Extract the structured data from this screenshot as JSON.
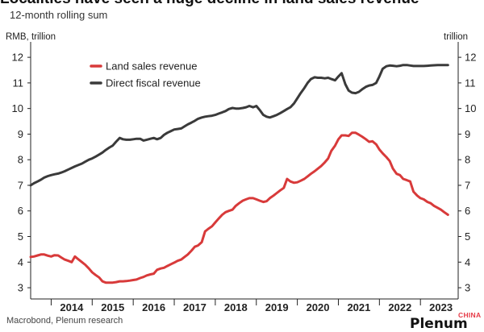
{
  "header": {
    "title": "Localities have seen a huge decline in land sales revenue",
    "subtitle": "12-month rolling sum"
  },
  "footer": {
    "source": "Macrobond, Plenum research",
    "brand": "Plenum",
    "brand_sub": "CHINA"
  },
  "chart_data": {
    "type": "line",
    "title": "Localities have seen a huge decline in land sales revenue",
    "subtitle": "12-month rolling sum",
    "ylabel_left": "RMB, trillion",
    "ylabel_right": "trillion",
    "ylim": [
      2.75,
      12.35
    ],
    "yticks": [
      3,
      4,
      5,
      6,
      7,
      8,
      9,
      10,
      11,
      12
    ],
    "xlim": [
      2013.5,
      2023.92
    ],
    "xticks": [
      "2014",
      "2015",
      "2016",
      "2017",
      "2018",
      "2019",
      "2020",
      "2021",
      "2022",
      "2023"
    ],
    "grid": false,
    "legend_position": "top-left",
    "series": [
      {
        "name": "Land sales revenue",
        "color": "#d83a3a",
        "x": [
          2013.5,
          2013.58,
          2013.67,
          2013.75,
          2013.83,
          2013.92,
          2014.0,
          2014.08,
          2014.17,
          2014.25,
          2014.33,
          2014.42,
          2014.5,
          2014.58,
          2014.67,
          2014.75,
          2014.83,
          2014.92,
          2015.0,
          2015.08,
          2015.17,
          2015.25,
          2015.33,
          2015.42,
          2015.5,
          2015.58,
          2015.67,
          2015.75,
          2015.83,
          2015.92,
          2016.0,
          2016.08,
          2016.17,
          2016.25,
          2016.33,
          2016.42,
          2016.5,
          2016.58,
          2016.67,
          2016.75,
          2016.83,
          2016.92,
          2017.0,
          2017.08,
          2017.17,
          2017.25,
          2017.33,
          2017.42,
          2017.5,
          2017.58,
          2017.67,
          2017.75,
          2017.83,
          2017.92,
          2018.0,
          2018.08,
          2018.17,
          2018.25,
          2018.33,
          2018.42,
          2018.5,
          2018.58,
          2018.67,
          2018.75,
          2018.83,
          2018.92,
          2019.0,
          2019.08,
          2019.17,
          2019.25,
          2019.33,
          2019.42,
          2019.5,
          2019.58,
          2019.67,
          2019.75,
          2019.83,
          2019.92,
          2020.0,
          2020.08,
          2020.17,
          2020.25,
          2020.33,
          2020.42,
          2020.5,
          2020.58,
          2020.67,
          2020.75,
          2020.83,
          2020.92,
          2021.0,
          2021.08,
          2021.17,
          2021.25,
          2021.33,
          2021.42,
          2021.5,
          2021.58,
          2021.67,
          2021.75,
          2021.83,
          2021.92,
          2022.0,
          2022.08,
          2022.17,
          2022.25,
          2022.33,
          2022.42,
          2022.5,
          2022.58,
          2022.67,
          2022.75,
          2022.83,
          2022.92,
          2023.0,
          2023.08,
          2023.17,
          2023.25,
          2023.33,
          2023.42,
          2023.5,
          2023.58,
          2023.67
        ],
        "values": [
          4.2,
          4.22,
          4.26,
          4.3,
          4.3,
          4.25,
          4.22,
          4.27,
          4.26,
          4.18,
          4.1,
          4.05,
          4.0,
          4.22,
          4.1,
          4.0,
          3.9,
          3.75,
          3.6,
          3.5,
          3.4,
          3.25,
          3.2,
          3.2,
          3.2,
          3.22,
          3.25,
          3.25,
          3.26,
          3.28,
          3.3,
          3.32,
          3.38,
          3.42,
          3.48,
          3.52,
          3.55,
          3.7,
          3.75,
          3.78,
          3.85,
          3.92,
          3.98,
          4.05,
          4.1,
          4.2,
          4.3,
          4.45,
          4.6,
          4.65,
          4.78,
          5.2,
          5.3,
          5.4,
          5.55,
          5.7,
          5.85,
          5.95,
          6.0,
          6.05,
          6.2,
          6.3,
          6.4,
          6.45,
          6.5,
          6.5,
          6.45,
          6.4,
          6.35,
          6.38,
          6.5,
          6.6,
          6.7,
          6.8,
          6.9,
          7.25,
          7.15,
          7.1,
          7.12,
          7.18,
          7.25,
          7.35,
          7.45,
          7.55,
          7.65,
          7.75,
          7.9,
          8.05,
          8.35,
          8.55,
          8.8,
          8.95,
          8.95,
          8.93,
          9.05,
          9.05,
          8.98,
          8.9,
          8.8,
          8.7,
          8.72,
          8.6,
          8.4,
          8.25,
          8.1,
          7.95,
          7.65,
          7.45,
          7.4,
          7.25,
          7.2,
          7.15,
          6.75,
          6.6,
          6.5,
          6.45,
          6.35,
          6.3,
          6.2,
          6.12,
          6.05,
          5.95,
          5.85
        ]
      },
      {
        "name": "Direct fiscal revenue",
        "color": "#3a3a3a",
        "x": [
          2013.5,
          2013.58,
          2013.67,
          2013.75,
          2013.83,
          2013.92,
          2014.0,
          2014.08,
          2014.17,
          2014.25,
          2014.33,
          2014.42,
          2014.5,
          2014.58,
          2014.67,
          2014.75,
          2014.83,
          2014.92,
          2015.0,
          2015.08,
          2015.17,
          2015.25,
          2015.33,
          2015.42,
          2015.5,
          2015.58,
          2015.67,
          2015.75,
          2015.83,
          2015.92,
          2016.0,
          2016.08,
          2016.17,
          2016.25,
          2016.33,
          2016.42,
          2016.5,
          2016.58,
          2016.67,
          2016.75,
          2016.83,
          2016.92,
          2017.0,
          2017.08,
          2017.17,
          2017.25,
          2017.33,
          2017.42,
          2017.5,
          2017.58,
          2017.67,
          2017.75,
          2017.83,
          2017.92,
          2018.0,
          2018.08,
          2018.17,
          2018.25,
          2018.33,
          2018.42,
          2018.5,
          2018.58,
          2018.67,
          2018.75,
          2018.83,
          2018.92,
          2019.0,
          2019.08,
          2019.17,
          2019.25,
          2019.33,
          2019.42,
          2019.5,
          2019.58,
          2019.67,
          2019.75,
          2019.83,
          2019.92,
          2020.0,
          2020.08,
          2020.17,
          2020.25,
          2020.33,
          2020.42,
          2020.5,
          2020.58,
          2020.67,
          2020.75,
          2020.83,
          2020.92,
          2021.0,
          2021.08,
          2021.17,
          2021.25,
          2021.33,
          2021.42,
          2021.5,
          2021.58,
          2021.67,
          2021.75,
          2021.83,
          2021.92,
          2022.0,
          2022.08,
          2022.17,
          2022.25,
          2022.33,
          2022.42,
          2022.5,
          2022.58,
          2022.67,
          2022.75,
          2022.83,
          2022.92,
          2023.0,
          2023.08,
          2023.17,
          2023.25,
          2023.33,
          2023.42,
          2023.5,
          2023.58,
          2023.67
        ],
        "values": [
          7.0,
          7.08,
          7.15,
          7.22,
          7.3,
          7.36,
          7.4,
          7.43,
          7.46,
          7.5,
          7.55,
          7.62,
          7.68,
          7.74,
          7.8,
          7.85,
          7.92,
          8.0,
          8.05,
          8.12,
          8.2,
          8.28,
          8.38,
          8.48,
          8.55,
          8.7,
          8.85,
          8.8,
          8.78,
          8.78,
          8.8,
          8.82,
          8.82,
          8.75,
          8.78,
          8.82,
          8.85,
          8.8,
          8.85,
          8.97,
          9.05,
          9.12,
          9.18,
          9.2,
          9.22,
          9.3,
          9.38,
          9.45,
          9.52,
          9.6,
          9.65,
          9.68,
          9.7,
          9.72,
          9.75,
          9.8,
          9.85,
          9.9,
          9.98,
          10.02,
          10.0,
          10.0,
          10.02,
          10.05,
          10.1,
          10.05,
          10.1,
          9.95,
          9.75,
          9.68,
          9.65,
          9.7,
          9.75,
          9.82,
          9.9,
          9.98,
          10.05,
          10.2,
          10.4,
          10.6,
          10.8,
          11.0,
          11.15,
          11.22,
          11.2,
          11.2,
          11.18,
          11.2,
          11.15,
          11.1,
          11.25,
          11.38,
          10.95,
          10.7,
          10.62,
          10.6,
          10.65,
          10.75,
          10.85,
          10.9,
          10.92,
          11.0,
          11.25,
          11.55,
          11.65,
          11.68,
          11.67,
          11.65,
          11.67,
          11.7,
          11.7,
          11.68,
          11.66,
          11.66,
          11.66,
          11.66,
          11.67,
          11.68,
          11.69,
          11.7,
          11.7,
          11.7,
          11.7
        ]
      }
    ]
  }
}
